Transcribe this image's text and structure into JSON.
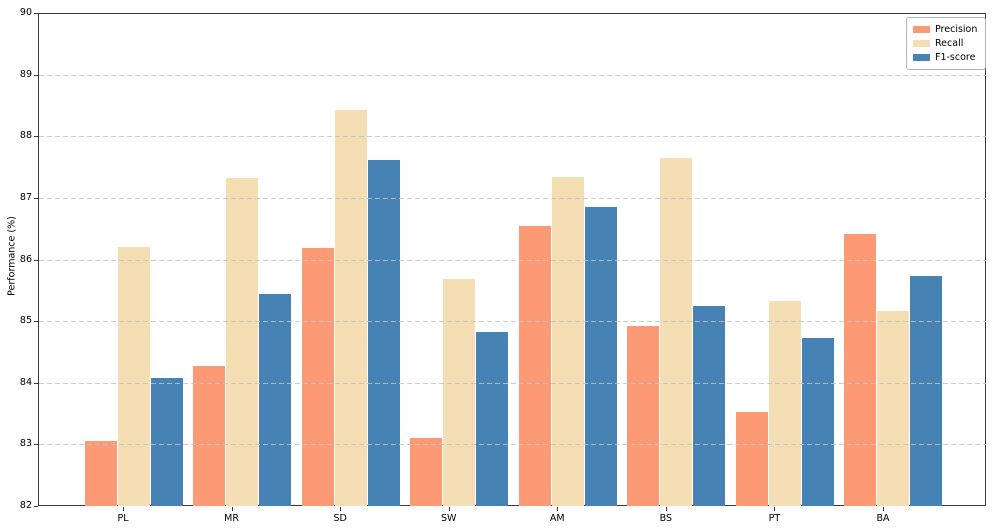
{
  "chart_data": {
    "type": "bar",
    "title": "",
    "xlabel": "",
    "ylabel": "Performance (%)",
    "categories": [
      "PL",
      "MR",
      "SD",
      "SW",
      "AM",
      "BS",
      "PT",
      "BA"
    ],
    "series": [
      {
        "name": "Precision",
        "color": "#FC9A75",
        "values": [
          83.05,
          84.27,
          86.19,
          83.1,
          86.54,
          84.92,
          83.52,
          86.41
        ]
      },
      {
        "name": "Recall",
        "color": "#F5DEB3",
        "values": [
          86.21,
          87.33,
          88.42,
          85.68,
          87.34,
          87.64,
          85.33,
          85.16
        ]
      },
      {
        "name": "F1-score",
        "color": "#4682B4",
        "values": [
          84.07,
          85.44,
          87.61,
          84.82,
          86.86,
          85.24,
          84.73,
          85.74
        ]
      }
    ],
    "ylim": [
      82,
      90
    ],
    "yticks": [
      82,
      83,
      84,
      85,
      86,
      87,
      88,
      89,
      90
    ],
    "grid": "horizontal-dashed",
    "grid_color": "#c3c3c3",
    "spine_color": "#3b3b3b",
    "legend_position": "upper-right"
  }
}
